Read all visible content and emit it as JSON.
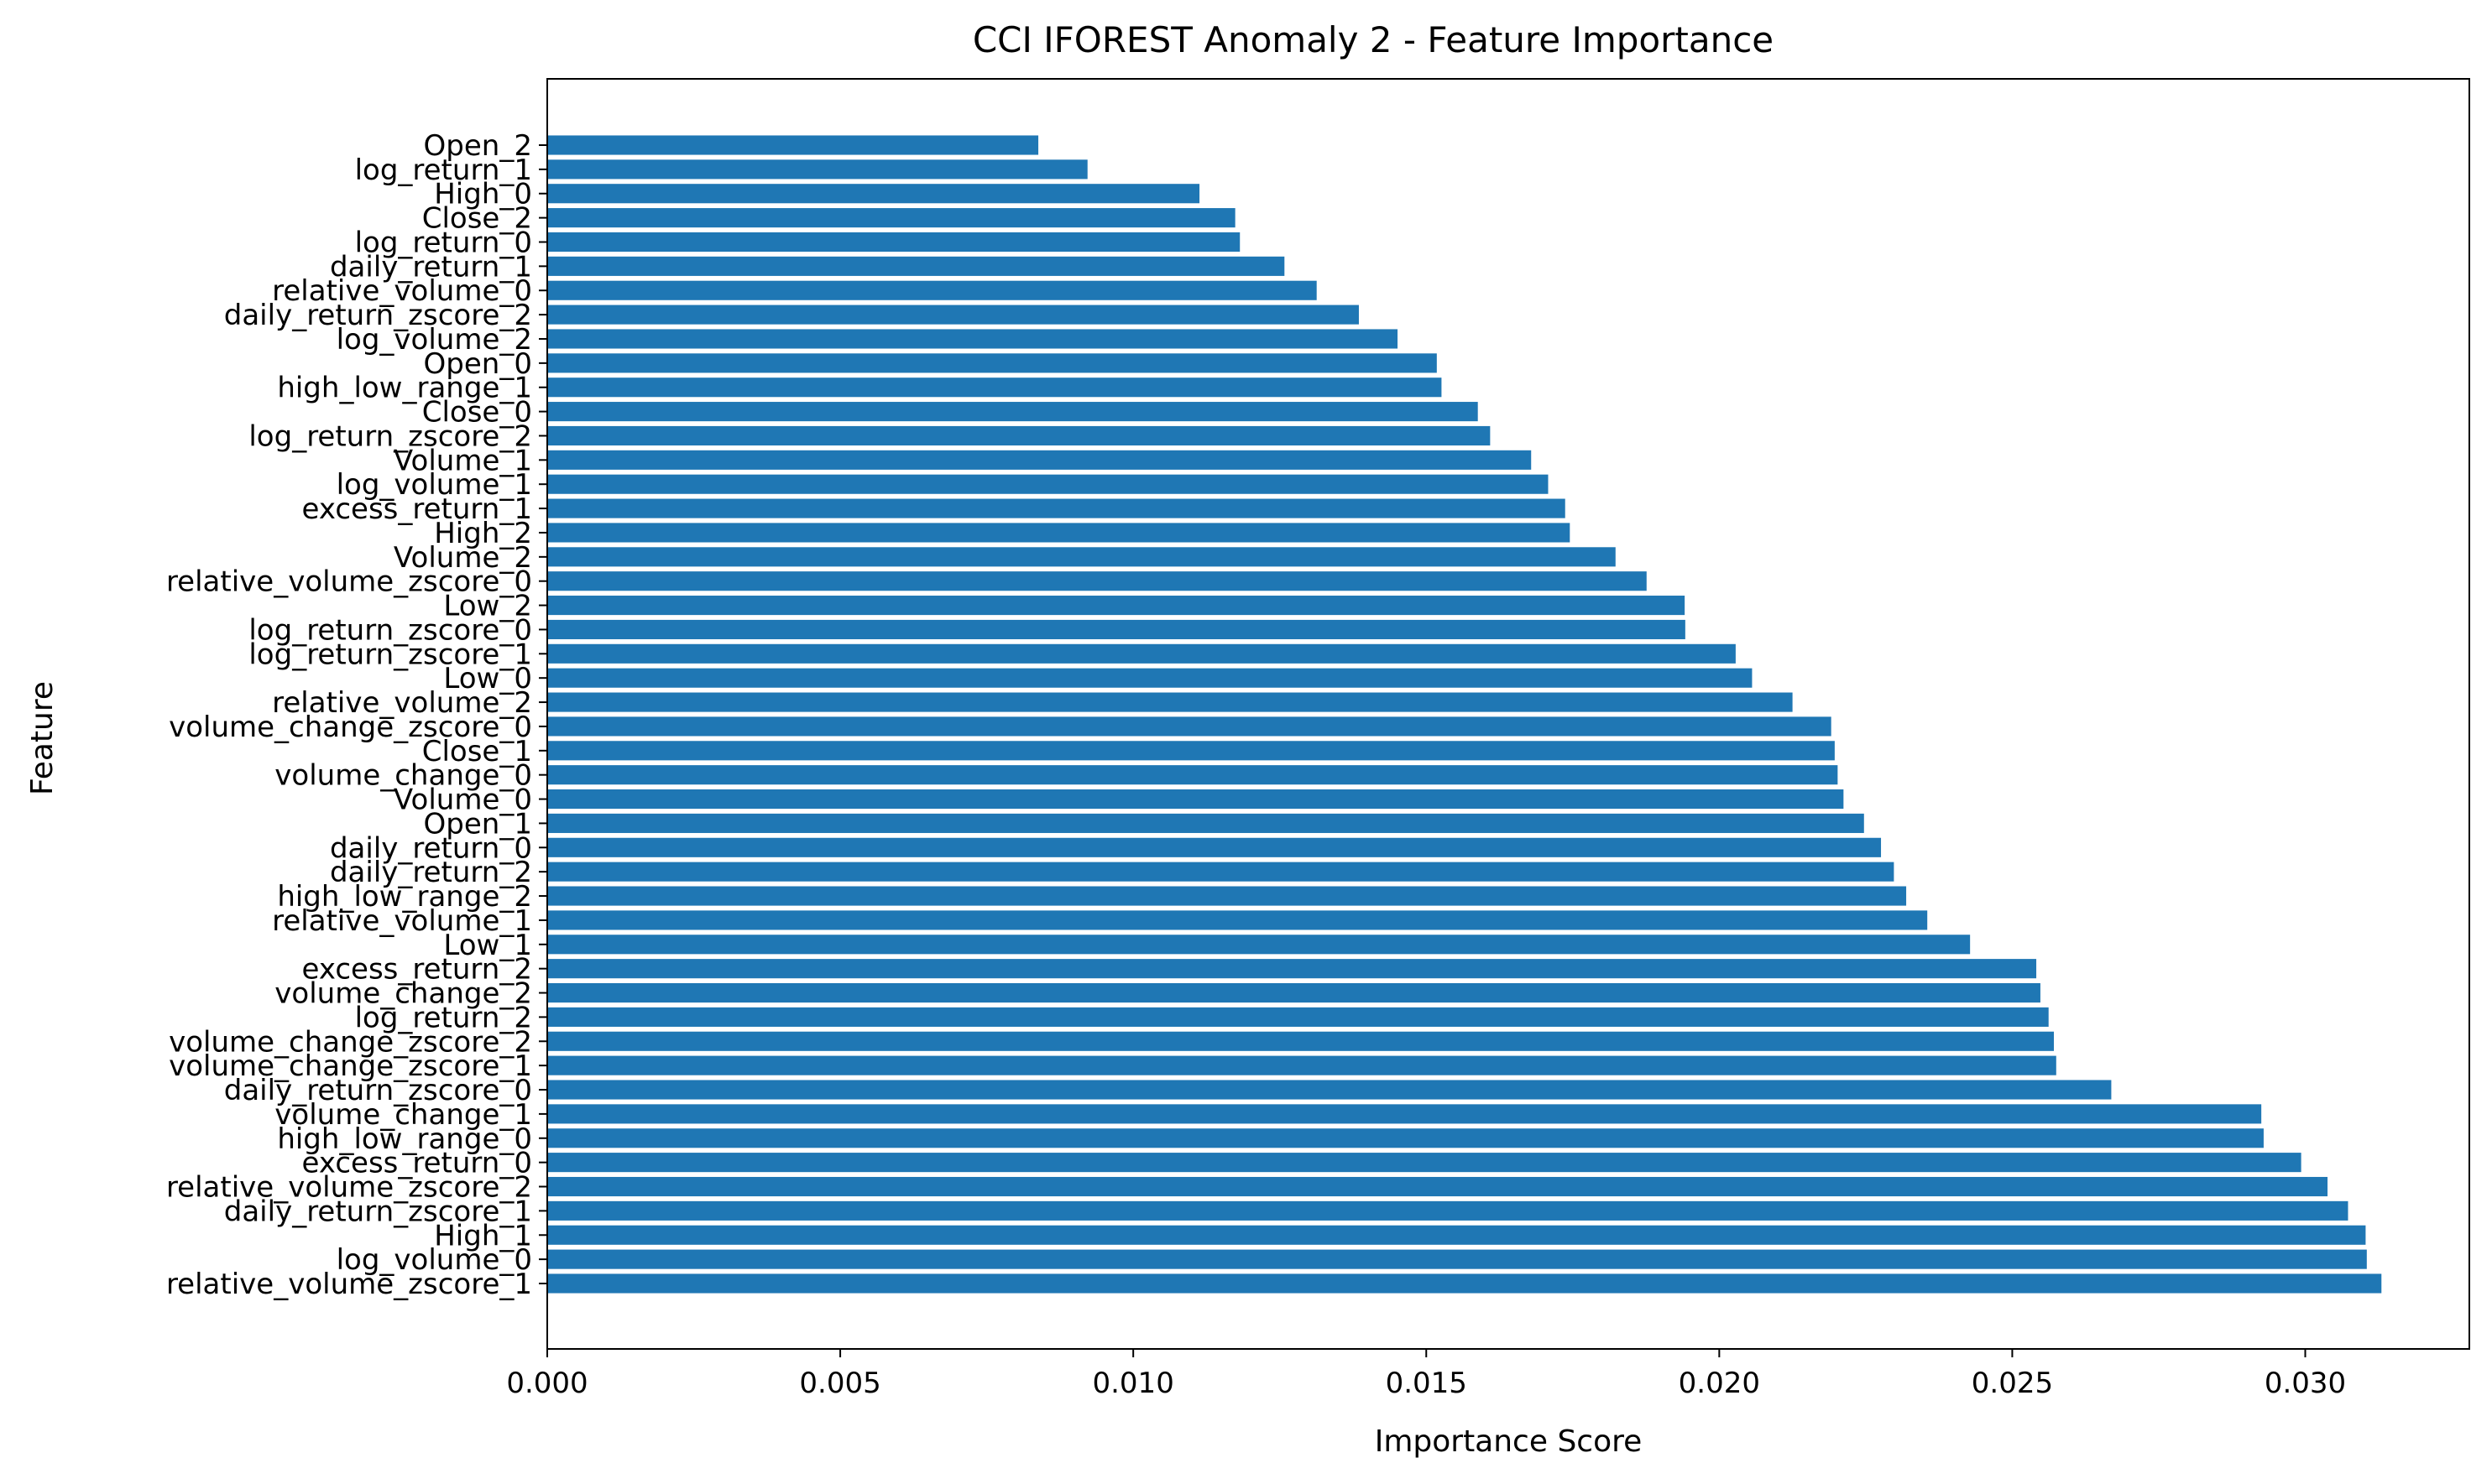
{
  "chart_data": {
    "type": "bar",
    "orientation": "horizontal",
    "title": "CCI IFOREST Anomaly 2 - Feature Importance",
    "xlabel": "Importance Score",
    "ylabel": "Feature",
    "xlim": [
      0,
      0.0328
    ],
    "xticks": [
      "0.000",
      "0.005",
      "0.010",
      "0.015",
      "0.020",
      "0.025",
      "0.030"
    ],
    "xtick_values": [
      0,
      0.005,
      0.01,
      0.015,
      0.02,
      0.025,
      0.03
    ],
    "bar_color": "#1f77b4",
    "grid": false,
    "categories": [
      "relative_volume_zscore_1",
      "log_volume_0",
      "High_1",
      "daily_return_zscore_1",
      "relative_volume_zscore_2",
      "excess_return_0",
      "high_low_range_0",
      "volume_change_1",
      "daily_return_zscore_0",
      "volume_change_zscore_1",
      "volume_change_zscore_2",
      "log_return_2",
      "volume_change_2",
      "excess_return_2",
      "Low_1",
      "relative_volume_1",
      "high_low_range_2",
      "daily_return_2",
      "daily_return_0",
      "Open_1",
      "Volume_0",
      "volume_change_0",
      "Close_1",
      "volume_change_zscore_0",
      "relative_volume_2",
      "Low_0",
      "log_return_zscore_1",
      "log_return_zscore_0",
      "Low_2",
      "relative_volume_zscore_0",
      "Volume_2",
      "High_2",
      "excess_return_1",
      "log_volume_1",
      "Volume_1",
      "log_return_zscore_2",
      "Close_0",
      "high_low_range_1",
      "Open_0",
      "log_volume_2",
      "daily_return_zscore_2",
      "relative_volume_0",
      "daily_return_1",
      "log_return_0",
      "Close_2",
      "High_0",
      "log_return_1",
      "Open_2"
    ],
    "values": [
      0.0313,
      0.03105,
      0.03103,
      0.03073,
      0.03038,
      0.02993,
      0.02929,
      0.02925,
      0.02669,
      0.02575,
      0.02571,
      0.02562,
      0.02548,
      0.02541,
      0.02428,
      0.02355,
      0.02319,
      0.02298,
      0.02276,
      0.02247,
      0.02212,
      0.02202,
      0.02197,
      0.02191,
      0.02125,
      0.02056,
      0.02028,
      0.01942,
      0.01941,
      0.01876,
      0.01823,
      0.01745,
      0.01737,
      0.01708,
      0.01679,
      0.01609,
      0.01588,
      0.01526,
      0.01518,
      0.01451,
      0.01385,
      0.01313,
      0.01258,
      0.01182,
      0.01174,
      0.01113,
      0.00922,
      0.00838
    ]
  }
}
